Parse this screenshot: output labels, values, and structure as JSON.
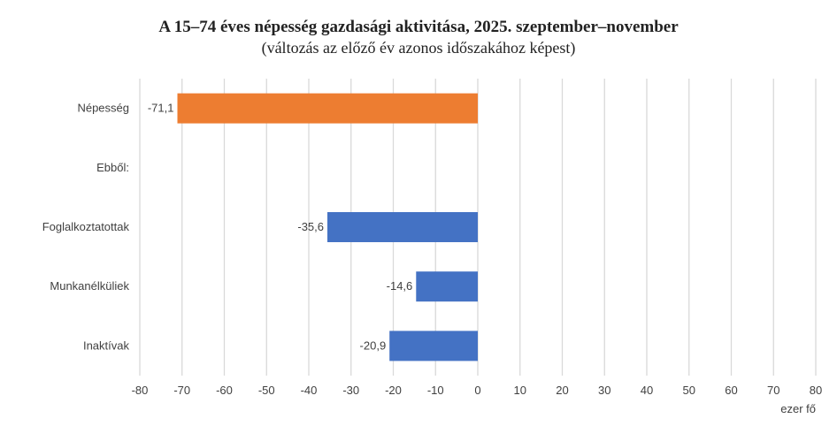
{
  "chart_data": {
    "type": "bar",
    "orientation": "horizontal",
    "title": "A 15–74 éves népesség gazdasági aktivitása, 2025. szeptember–november",
    "subtitle": "(változás az előző év azonos időszakához képest)",
    "categories": [
      "Népesség",
      "Ebből:",
      "Foglalkoztatottak",
      "Munkanélküliek",
      "Inaktívak"
    ],
    "values": [
      -71.1,
      null,
      -35.6,
      -14.6,
      -20.9
    ],
    "data_labels": [
      "-71,1",
      "",
      "-35,6",
      "-14,6",
      "-20,9"
    ],
    "colors": [
      "#ED7D31",
      null,
      "#4472C4",
      "#4472C4",
      "#4472C4"
    ],
    "xlabel": "ezer fő",
    "xlim": [
      -80,
      80
    ],
    "xticks": [
      -80,
      -70,
      -60,
      -50,
      -40,
      -30,
      -20,
      -10,
      0,
      10,
      20,
      30,
      40,
      50,
      60,
      70,
      80
    ],
    "grid": true,
    "gridColor": "#d9d9d9"
  }
}
